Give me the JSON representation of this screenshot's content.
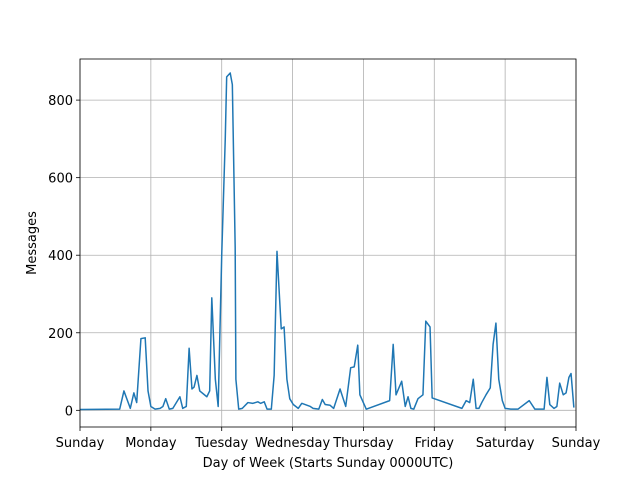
{
  "chart_data": {
    "type": "line",
    "xlabel": "Day of Week (Starts Sunday 0000UTC)",
    "ylabel": "Messages",
    "color": "#1f77b4",
    "grid": true,
    "xlim": [
      0,
      7
    ],
    "ylim": [
      -43,
      906
    ],
    "xticks": [
      {
        "value": 0,
        "label": "Sunday"
      },
      {
        "value": 1,
        "label": "Monday"
      },
      {
        "value": 2,
        "label": "Tuesday"
      },
      {
        "value": 3,
        "label": "Wednesday"
      },
      {
        "value": 4,
        "label": "Thursday"
      },
      {
        "value": 5,
        "label": "Friday"
      },
      {
        "value": 6,
        "label": "Saturday"
      },
      {
        "value": 7,
        "label": "Sunday"
      }
    ],
    "yticks": [
      0,
      200,
      400,
      600,
      800
    ],
    "x": [
      0,
      0.56,
      0.62,
      0.71,
      0.76,
      0.8,
      0.86,
      0.92,
      0.96,
      1.0,
      1.06,
      1.13,
      1.17,
      1.21,
      1.26,
      1.31,
      1.41,
      1.45,
      1.5,
      1.54,
      1.58,
      1.61,
      1.65,
      1.69,
      1.79,
      1.83,
      1.86,
      1.91,
      1.95,
      2.0,
      2.05,
      2.07,
      2.12,
      2.15,
      2.19,
      2.2,
      2.24,
      2.29,
      2.37,
      2.44,
      2.51,
      2.55,
      2.6,
      2.64,
      2.7,
      2.74,
      2.78,
      2.84,
      2.88,
      2.92,
      2.96,
      3.01,
      3.08,
      3.13,
      3.25,
      3.29,
      3.37,
      3.42,
      3.46,
      3.53,
      3.58,
      3.67,
      3.75,
      3.82,
      3.87,
      3.92,
      3.95,
      4.04,
      4.37,
      4.42,
      4.46,
      4.54,
      4.59,
      4.63,
      4.67,
      4.71,
      4.77,
      4.84,
      4.88,
      4.94,
      4.97,
      5.39,
      5.45,
      5.5,
      5.55,
      5.59,
      5.63,
      5.67,
      5.73,
      5.79,
      5.83,
      5.87,
      5.91,
      5.96,
      6.0,
      6.08,
      6.18,
      6.34,
      6.42,
      6.55,
      6.59,
      6.63,
      6.69,
      6.73,
      6.77,
      6.82,
      6.86,
      6.9,
      6.93,
      6.97
    ],
    "values": [
      2,
      3,
      50,
      5,
      45,
      20,
      185,
      187,
      50,
      10,
      3,
      5,
      10,
      30,
      3,
      5,
      35,
      5,
      10,
      160,
      55,
      60,
      90,
      50,
      35,
      50,
      290,
      80,
      10,
      400,
      700,
      860,
      870,
      840,
      420,
      80,
      3,
      5,
      20,
      18,
      22,
      18,
      22,
      3,
      3,
      90,
      410,
      210,
      215,
      80,
      30,
      15,
      5,
      18,
      10,
      5,
      3,
      28,
      15,
      13,
      5,
      55,
      10,
      110,
      112,
      168,
      40,
      3,
      25,
      170,
      40,
      75,
      10,
      35,
      5,
      3,
      30,
      40,
      230,
      215,
      32,
      5,
      25,
      20,
      80,
      5,
      5,
      20,
      40,
      58,
      170,
      225,
      80,
      25,
      5,
      3,
      3,
      25,
      3,
      3,
      85,
      15,
      5,
      10,
      70,
      40,
      45,
      85,
      95,
      7
    ]
  }
}
